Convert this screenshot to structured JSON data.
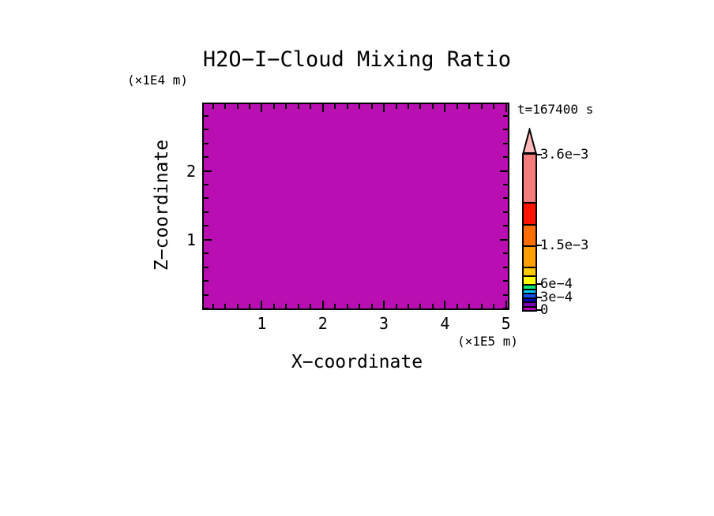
{
  "chart_data": {
    "type": "heatmap",
    "title": "H2O−I−Cloud Mixing Ratio",
    "annotation": "t=167400 s",
    "x_axis": {
      "label": "X−coordinate",
      "units": "(×1E5 m)",
      "range": [
        0.05,
        5.03
      ],
      "major_ticks": [
        1,
        2,
        3,
        4,
        5
      ],
      "tick_labels": [
        "1",
        "2",
        "3",
        "4",
        "5"
      ],
      "minor_step": 0.2
    },
    "z_axis": {
      "label": "Z−coordinate",
      "units": "(×1E4 m)",
      "range": [
        0,
        2.97
      ],
      "major_ticks": [
        1,
        2
      ],
      "tick_labels": [
        "1",
        "2"
      ],
      "minor_step": 0.2
    },
    "field": {
      "description": "mixing ratio uniform over whole domain (lowest contour bin)",
      "uniform_value": 0,
      "fill_color": "#B90FB2"
    },
    "colorbar": {
      "min": 0,
      "max": 0.0036,
      "arrow": "above-max",
      "arrow_color": "#FFB8B8",
      "labels": [
        {
          "value": 0,
          "text": "0"
        },
        {
          "value": 0.0003,
          "text": "3e−4"
        },
        {
          "value": 0.0006,
          "text": "6e−4"
        },
        {
          "value": 0.0015,
          "text": "1.5e−3"
        },
        {
          "value": 0.0036,
          "text": "3.6e−3"
        }
      ],
      "segments": [
        {
          "from": 0,
          "to": 0.0001,
          "color": "#B800B8"
        },
        {
          "from": 0.0001,
          "to": 0.0002,
          "color": "#7C00B4"
        },
        {
          "from": 0.0002,
          "to": 0.0003,
          "color": "#0000BE"
        },
        {
          "from": 0.0003,
          "to": 0.0004,
          "color": "#1C50F0"
        },
        {
          "from": 0.0004,
          "to": 0.0005,
          "color": "#00CCFF"
        },
        {
          "from": 0.0005,
          "to": 0.0006,
          "color": "#00E673"
        },
        {
          "from": 0.0006,
          "to": 0.0008,
          "color": "#FFFF00"
        },
        {
          "from": 0.0008,
          "to": 0.001,
          "color": "#FFC800"
        },
        {
          "from": 0.001,
          "to": 0.0015,
          "color": "#FFA000"
        },
        {
          "from": 0.0015,
          "to": 0.002,
          "color": "#FF6E00"
        },
        {
          "from": 0.002,
          "to": 0.0025,
          "color": "#FF1400"
        },
        {
          "from": 0.0025,
          "to": 0.0036,
          "color": "#F47C7C"
        }
      ]
    }
  }
}
